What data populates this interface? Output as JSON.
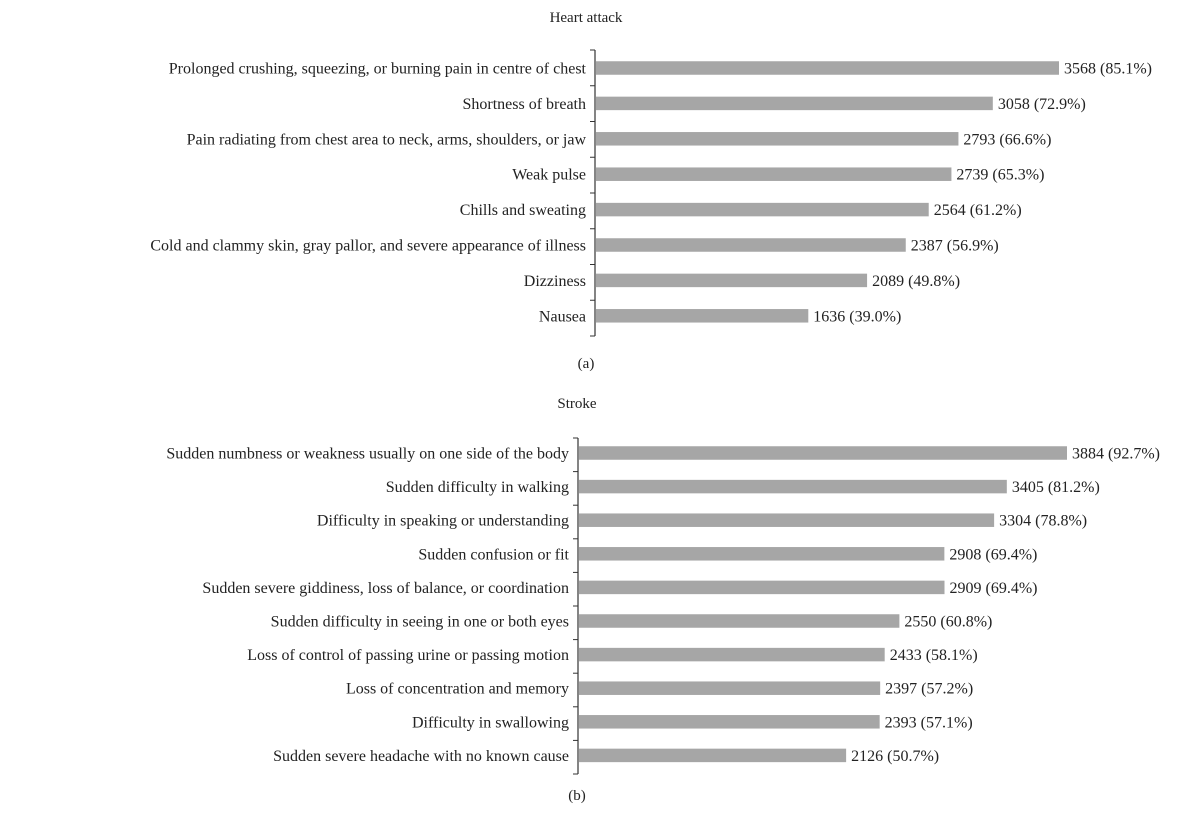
{
  "chart_data": [
    {
      "type": "bar",
      "orientation": "horizontal",
      "title": "Heart attack",
      "panel_label": "(a)",
      "categories": [
        "Prolonged crushing, squeezing, or burning pain in centre of chest",
        "Shortness of breath",
        "Pain radiating from chest area to neck, arms, shoulders, or jaw",
        "Weak pulse",
        "Chills and sweating",
        "Cold and clammy skin, gray pallor, and severe appearance of illness",
        "Dizziness",
        "Nausea"
      ],
      "values": [
        3568,
        3058,
        2793,
        2739,
        2564,
        2387,
        2089,
        1636
      ],
      "percents": [
        "85.1%",
        "72.9%",
        "66.6%",
        "65.3%",
        "61.2%",
        "56.9%",
        "49.8%",
        "39.0%"
      ],
      "data_labels": [
        "3568 (85.1%)",
        "3058 (72.9%)",
        "2793 (66.6%)",
        "2739 (65.3%)",
        "2564 (61.2%)",
        "2387 (56.9%)",
        "2089 (49.8%)",
        "1636 (39.0%)"
      ],
      "bar_color": "#a6a6a6",
      "grid": false,
      "legend": "none"
    },
    {
      "type": "bar",
      "orientation": "horizontal",
      "title": "Stroke",
      "panel_label": "(b)",
      "categories": [
        "Sudden numbness or weakness usually on one side of the body",
        "Sudden difficulty in walking",
        "Difficulty in speaking or understanding",
        "Sudden confusion or fit",
        "Sudden severe giddiness, loss of balance, or coordination",
        "Sudden difficulty in seeing in one or both eyes",
        "Loss of control of passing urine or passing motion",
        "Loss of concentration and memory",
        "Difficulty in swallowing",
        "Sudden severe headache with no known cause"
      ],
      "values": [
        3884,
        3405,
        3304,
        2908,
        2909,
        2550,
        2433,
        2397,
        2393,
        2126
      ],
      "percents": [
        "92.7%",
        "81.2%",
        "78.8%",
        "69.4%",
        "69.4%",
        "60.8%",
        "58.1%",
        "57.2%",
        "57.1%",
        "50.7%"
      ],
      "data_labels": [
        "3884 (92.7%)",
        "3405 (81.2%)",
        "3304 (78.8%)",
        "2908 (69.4%)",
        "2909 (69.4%)",
        "2550 (60.8%)",
        "2433 (58.1%)",
        "2397 (57.2%)",
        "2393 (57.1%)",
        "2126 (50.7%)"
      ],
      "bar_color": "#a6a6a6",
      "grid": false,
      "legend": "none"
    }
  ]
}
